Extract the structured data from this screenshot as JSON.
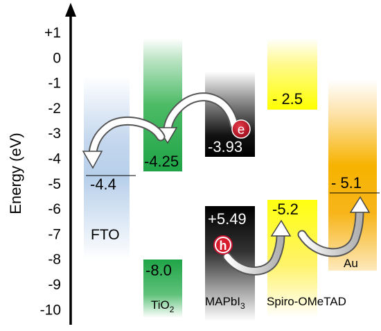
{
  "axis": {
    "label": "Energy (eV)",
    "ticks": [
      "+1",
      "0",
      "-1",
      "-2",
      "-3",
      "-4",
      "-5",
      "-6",
      "-7",
      "-8",
      "-9",
      "-10"
    ]
  },
  "materials": {
    "fto": {
      "name": "FTO",
      "level": "-4.4"
    },
    "tio2": {
      "name_main": "TiO",
      "name_sub": "2",
      "cb": "-4.25",
      "vb": "-8.0"
    },
    "mapbi3": {
      "name_main": "MAPbI",
      "name_sub": "3",
      "cb": "-3.93",
      "vb": "+5.49"
    },
    "spiro": {
      "name": "Spiro-OMeTAD",
      "lumo": "- 2.5",
      "homo": "-5.2"
    },
    "au": {
      "name": "Au",
      "level": "- 5.1"
    }
  },
  "carriers": {
    "electron": "e",
    "hole": "h"
  },
  "colors": {
    "fto": "#b9d0ea",
    "tio2": "#22a84a",
    "mapbi3": "#000000",
    "spiro": "#ffff00",
    "au": "#f5ad00",
    "electron": "#c8102e",
    "hole": "#c8102e"
  }
}
